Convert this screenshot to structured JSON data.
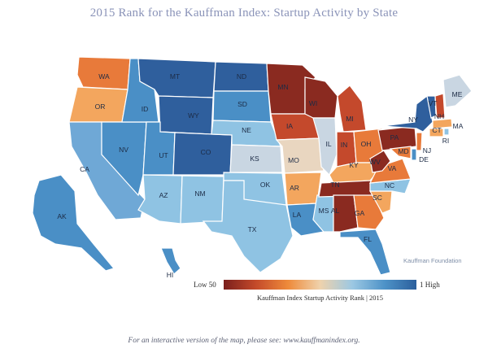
{
  "title": "2015 Rank for the Kauffman Index: Startup Activity by State",
  "credit": "Kauffman Foundation",
  "legend": {
    "low_label": "Low 50",
    "high_label": "1 High",
    "caption": "Kauffman Index Startup Activity Rank  |  2015"
  },
  "footer": "For an interactive version of the map, please see: www.kauffmanindex.org.",
  "colors": {
    "dark_red": "#8a2a20",
    "red": "#c4492c",
    "orange": "#e87a3a",
    "light_orange": "#f3a65e",
    "beige": "#e9d6c0",
    "light_gray_blue": "#c9d6e2",
    "light_blue": "#8fc3e3",
    "mid_blue": "#4a8fc6",
    "dark_blue": "#2f5f9d"
  },
  "states": {
    "WA": "WA",
    "OR": "OR",
    "CA": "CA",
    "NV": "NV",
    "ID": "ID",
    "MT": "MT",
    "WY": "WY",
    "UT": "UT",
    "AZ": "AZ",
    "CO": "CO",
    "NM": "NM",
    "ND": "ND",
    "SD": "SD",
    "NE": "NE",
    "KS": "KS",
    "OK": "OK",
    "TX": "TX",
    "MN": "MN",
    "IA": "IA",
    "MO": "MO",
    "AR": "AR",
    "LA": "LA",
    "WI": "WI",
    "IL": "IL",
    "MS": "MS",
    "MI": "MI",
    "IN": "IN",
    "TN": "TN",
    "AL": "AL",
    "KY": "KY",
    "OH": "OH",
    "GA": "GA",
    "FL": "FL",
    "SC": "SC",
    "NC": "NC",
    "VA": "VA",
    "WV": "WV",
    "PA": "PA",
    "NY": "NY",
    "VT": "VT",
    "NH": "NH",
    "ME": "ME",
    "MA": "MA",
    "CT": "CT",
    "RI": "RI",
    "NJ": "NJ",
    "DE": "DE",
    "MD": "MD",
    "AK": "AK",
    "HI": "HI"
  }
}
